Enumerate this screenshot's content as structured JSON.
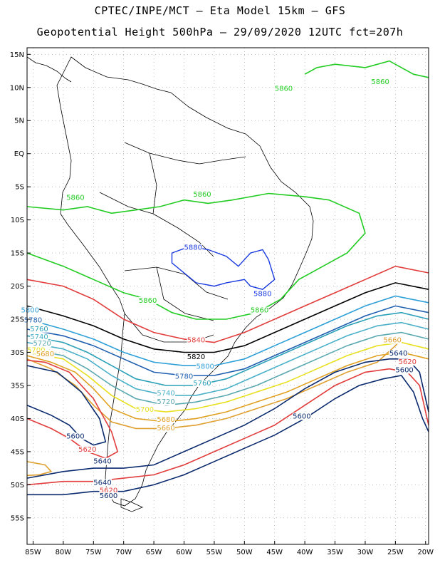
{
  "header": {
    "line1": "CPTEC/INPE/MCT –  Eta Model 15km – GFS",
    "line2": "Geopotential Height 500hPa – 29/09/2020 12UTC fct=207h"
  },
  "axes": {
    "lat_labels": [
      "15N",
      "10N",
      "5N",
      "EQ",
      "5S",
      "10S",
      "15S",
      "20S",
      "25S",
      "30S",
      "35S",
      "40S",
      "45S",
      "50S",
      "55S"
    ],
    "lat_values": [
      15,
      10,
      5,
      0,
      -5,
      -10,
      -15,
      -20,
      -25,
      -30,
      -35,
      -40,
      -45,
      -50,
      -55
    ],
    "lon_labels": [
      "85W",
      "80W",
      "75W",
      "70W",
      "65W",
      "60W",
      "55W",
      "50W",
      "45W",
      "40W",
      "35W",
      "30W",
      "25W",
      "20W"
    ],
    "lon_values": [
      -85,
      -80,
      -75,
      -70,
      -65,
      -60,
      -55,
      -50,
      -45,
      -40,
      -35,
      -30,
      -25,
      -20
    ],
    "lat_range": [
      -59,
      16
    ],
    "lon_range": [
      -86,
      -19.5
    ],
    "grid": "dotted"
  },
  "contour_colors": {
    "5880": "#1a3ae0",
    "5860": "#22cc22",
    "5840": "#e23c3c",
    "5820": "#000000",
    "5800": "#2ea0d8",
    "5780": "#1f5fb0",
    "5760": "#2aa0b8",
    "5740": "#4ab0c8",
    "5720": "#5aa8b0",
    "5700": "#e8e020",
    "5680": "#e0a020",
    "5660": "#e0a030",
    "5640": "#0a2a6e",
    "5620": "#e23c3c",
    "5600": "#0a2a6e"
  },
  "contours": [
    {
      "value": "5860",
      "pts": [
        [
          -86,
          -8
        ],
        [
          -80,
          -8.5
        ],
        [
          -76,
          -8
        ],
        [
          -72,
          -9
        ],
        [
          -68,
          -8.5
        ],
        [
          -64,
          -8
        ],
        [
          -60,
          -7
        ],
        [
          -56,
          -7.5
        ],
        [
          -52,
          -7
        ],
        [
          -46,
          -6
        ],
        [
          -40,
          -6.5
        ],
        [
          -36,
          -7
        ],
        [
          -31,
          -9
        ],
        [
          -30,
          -12
        ],
        [
          -33,
          -15
        ],
        [
          -37,
          -17
        ],
        [
          -41,
          -19
        ],
        [
          -44,
          -22
        ],
        [
          -48,
          -24
        ],
        [
          -53,
          -25
        ],
        [
          -58,
          -25
        ],
        [
          -62,
          -24
        ],
        [
          -66,
          -22
        ],
        [
          -70,
          -21
        ],
        [
          -75,
          -19
        ],
        [
          -80,
          -17
        ],
        [
          -86,
          -15
        ]
      ]
    },
    {
      "value": "5860",
      "pts": [
        [
          -40,
          12
        ],
        [
          -38,
          13
        ],
        [
          -35,
          13.5
        ],
        [
          -30,
          13
        ],
        [
          -26,
          14
        ],
        [
          -22,
          12
        ],
        [
          -19.5,
          11.5
        ]
      ]
    },
    {
      "value": "5840",
      "pts": [
        [
          -86,
          -19
        ],
        [
          -80,
          -20
        ],
        [
          -75,
          -22
        ],
        [
          -70,
          -25
        ],
        [
          -65,
          -27
        ],
        [
          -60,
          -28
        ],
        [
          -55,
          -28.5
        ],
        [
          -50,
          -27
        ],
        [
          -45,
          -25
        ],
        [
          -40,
          -23
        ],
        [
          -35,
          -21
        ],
        [
          -30,
          -19
        ],
        [
          -25,
          -17
        ],
        [
          -19.5,
          -18
        ]
      ]
    },
    {
      "value": "5820",
      "pts": [
        [
          -86,
          -23
        ],
        [
          -80,
          -24.5
        ],
        [
          -75,
          -26
        ],
        [
          -70,
          -28
        ],
        [
          -65,
          -29.5
        ],
        [
          -60,
          -30
        ],
        [
          -55,
          -30
        ],
        [
          -50,
          -29
        ],
        [
          -45,
          -27
        ],
        [
          -40,
          -25
        ],
        [
          -35,
          -23
        ],
        [
          -30,
          -21
        ],
        [
          -25,
          -19.5
        ],
        [
          -19.5,
          -20.5
        ]
      ]
    },
    {
      "value": "5800",
      "pts": [
        [
          -86,
          -25
        ],
        [
          -80,
          -26.5
        ],
        [
          -75,
          -28
        ],
        [
          -70,
          -30
        ],
        [
          -65,
          -31.5
        ],
        [
          -60,
          -32
        ],
        [
          -55,
          -32
        ],
        [
          -50,
          -31
        ],
        [
          -45,
          -29
        ],
        [
          -40,
          -27
        ],
        [
          -35,
          -25
        ],
        [
          -30,
          -23
        ],
        [
          -25,
          -21.5
        ],
        [
          -19.5,
          -22.5
        ]
      ]
    },
    {
      "value": "5780",
      "pts": [
        [
          -86,
          -26.5
        ],
        [
          -80,
          -27.5
        ],
        [
          -75,
          -29
        ],
        [
          -70,
          -31
        ],
        [
          -65,
          -33
        ],
        [
          -60,
          -33.5
        ],
        [
          -55,
          -33.5
        ],
        [
          -50,
          -32.5
        ],
        [
          -45,
          -30.5
        ],
        [
          -40,
          -28.5
        ],
        [
          -35,
          -26.5
        ],
        [
          -30,
          -24.5
        ],
        [
          -25,
          -23
        ],
        [
          -19.5,
          -24
        ]
      ]
    },
    {
      "value": "5760",
      "pts": [
        [
          -86,
          -27.5
        ],
        [
          -80,
          -28.5
        ],
        [
          -76,
          -30
        ],
        [
          -72,
          -32
        ],
        [
          -68,
          -34
        ],
        [
          -63,
          -35
        ],
        [
          -58,
          -35
        ],
        [
          -53,
          -34
        ],
        [
          -48,
          -32
        ],
        [
          -43,
          -30
        ],
        [
          -38,
          -28
        ],
        [
          -33,
          -26
        ],
        [
          -28,
          -24.5
        ],
        [
          -24,
          -24
        ],
        [
          -19.5,
          -25
        ]
      ]
    },
    {
      "value": "5740",
      "pts": [
        [
          -86,
          -28.5
        ],
        [
          -80,
          -29.5
        ],
        [
          -76,
          -31
        ],
        [
          -72,
          -33.5
        ],
        [
          -68,
          -35.5
        ],
        [
          -63,
          -36.5
        ],
        [
          -58,
          -36.5
        ],
        [
          -53,
          -35.5
        ],
        [
          -48,
          -33.5
        ],
        [
          -43,
          -31.5
        ],
        [
          -38,
          -29.5
        ],
        [
          -33,
          -27.5
        ],
        [
          -28,
          -26
        ],
        [
          -24,
          -25.5
        ],
        [
          -19.5,
          -26.5
        ]
      ]
    },
    {
      "value": "5720",
      "pts": [
        [
          -86,
          -29.5
        ],
        [
          -80,
          -30.5
        ],
        [
          -76,
          -32.5
        ],
        [
          -72,
          -35
        ],
        [
          -68,
          -37
        ],
        [
          -63,
          -38
        ],
        [
          -58,
          -37.5
        ],
        [
          -53,
          -36.5
        ],
        [
          -48,
          -35
        ],
        [
          -43,
          -33
        ],
        [
          -38,
          -31
        ],
        [
          -33,
          -29
        ],
        [
          -28,
          -27.5
        ],
        [
          -24,
          -27
        ],
        [
          -19.5,
          -28
        ]
      ]
    },
    {
      "value": "5700",
      "pts": [
        [
          -86,
          -30
        ],
        [
          -80,
          -31
        ],
        [
          -76,
          -33.5
        ],
        [
          -72,
          -36.5
        ],
        [
          -68,
          -38.5
        ],
        [
          -63,
          -39
        ],
        [
          -58,
          -38.5
        ],
        [
          -53,
          -37.5
        ],
        [
          -48,
          -36
        ],
        [
          -43,
          -34.5
        ],
        [
          -38,
          -32.5
        ],
        [
          -33,
          -30.5
        ],
        [
          -28,
          -29
        ],
        [
          -24,
          -28.5
        ],
        [
          -19.5,
          -29.5
        ]
      ]
    },
    {
      "value": "5680",
      "pts": [
        [
          -86,
          -30.5
        ],
        [
          -82,
          -31.5
        ],
        [
          -78,
          -33
        ],
        [
          -75,
          -35.5
        ],
        [
          -72,
          -38.5
        ],
        [
          -68,
          -40
        ],
        [
          -63,
          -40.5
        ],
        [
          -58,
          -40
        ],
        [
          -53,
          -39
        ],
        [
          -48,
          -37.5
        ],
        [
          -43,
          -36
        ],
        [
          -38,
          -34
        ],
        [
          -33,
          -32
        ],
        [
          -28,
          -30.5
        ],
        [
          -24,
          -30
        ],
        [
          -19.5,
          -31
        ]
      ]
    },
    {
      "value": "5660",
      "pts": [
        [
          -86,
          -31
        ],
        [
          -82,
          -32.5
        ],
        [
          -78,
          -35
        ],
        [
          -75,
          -38
        ],
        [
          -72,
          -40.5
        ],
        [
          -68,
          -41.5
        ],
        [
          -63,
          -41.5
        ],
        [
          -58,
          -41
        ],
        [
          -53,
          -40
        ],
        [
          -48,
          -38.5
        ],
        [
          -43,
          -37
        ],
        [
          -38,
          -35
        ],
        [
          -33,
          -33
        ],
        [
          -28,
          -31.5
        ],
        [
          -25,
          -29
        ],
        [
          -24,
          -28
        ]
      ]
    },
    {
      "value": "5640",
      "pts": [
        [
          -86,
          -49
        ],
        [
          -80,
          -48
        ],
        [
          -75,
          -47.5
        ],
        [
          -70,
          -47.5
        ],
        [
          -65,
          -47
        ],
        [
          -60,
          -45
        ],
        [
          -55,
          -43
        ],
        [
          -50,
          -41
        ],
        [
          -45,
          -38.5
        ],
        [
          -40,
          -35.5
        ],
        [
          -35,
          -33
        ],
        [
          -30,
          -31.5
        ],
        [
          -26,
          -31
        ],
        [
          -23,
          -31
        ],
        [
          -21,
          -33
        ],
        [
          -19.5,
          -39
        ]
      ]
    },
    {
      "value": "5620",
      "pts": [
        [
          -86,
          -50
        ],
        [
          -80,
          -49.5
        ],
        [
          -75,
          -49.5
        ],
        [
          -70,
          -49
        ],
        [
          -65,
          -48.5
        ],
        [
          -60,
          -47
        ],
        [
          -55,
          -45
        ],
        [
          -50,
          -43
        ],
        [
          -45,
          -41
        ],
        [
          -40,
          -38
        ],
        [
          -35,
          -35
        ],
        [
          -30,
          -33
        ],
        [
          -26,
          -32.5
        ],
        [
          -23,
          -33
        ],
        [
          -21,
          -35
        ],
        [
          -19.5,
          -41
        ]
      ]
    },
    {
      "value": "5600",
      "pts": [
        [
          -86,
          -51.5
        ],
        [
          -80,
          -51.5
        ],
        [
          -75,
          -51
        ],
        [
          -70,
          -51
        ],
        [
          -65,
          -50
        ],
        [
          -60,
          -48.5
        ],
        [
          -55,
          -46.5
        ],
        [
          -50,
          -44.5
        ],
        [
          -45,
          -42.5
        ],
        [
          -40,
          -40
        ],
        [
          -35,
          -37
        ],
        [
          -31,
          -35
        ],
        [
          -27,
          -34
        ],
        [
          -24,
          -33.5
        ],
        [
          -22,
          -36
        ],
        [
          -20.5,
          -40
        ],
        [
          -19.5,
          -42
        ]
      ]
    },
    {
      "value": "5620",
      "pts": [
        [
          -86,
          -40
        ],
        [
          -82,
          -41.5
        ],
        [
          -79,
          -43
        ],
        [
          -76,
          -45
        ],
        [
          -73,
          -46
        ],
        [
          -71,
          -45
        ],
        [
          -72,
          -42
        ],
        [
          -75,
          -37
        ],
        [
          -79,
          -33
        ],
        [
          -83,
          -31.5
        ],
        [
          -86,
          -31.2
        ]
      ]
    },
    {
      "value": "5600",
      "pts": [
        [
          -86,
          -38
        ],
        [
          -82,
          -39.5
        ],
        [
          -79,
          -41
        ],
        [
          -77,
          -43
        ],
        [
          -75,
          -44
        ],
        [
          -73,
          -43.5
        ],
        [
          -74,
          -40
        ],
        [
          -77,
          -36
        ],
        [
          -81,
          -33
        ],
        [
          -86,
          -32
        ]
      ]
    },
    {
      "value": "5660",
      "pts": [
        [
          -86,
          -46.5
        ],
        [
          -83,
          -47
        ],
        [
          -82,
          -48
        ],
        [
          -84,
          -48.5
        ],
        [
          -86,
          -48.6
        ]
      ]
    }
  ],
  "blue_5880": [
    [
      -62,
      -15
    ],
    [
      -59,
      -14
    ],
    [
      -56,
      -14.5
    ],
    [
      -53,
      -15.5
    ],
    [
      -51,
      -17
    ],
    [
      -49,
      -15
    ],
    [
      -47,
      -14.5
    ],
    [
      -46,
      -16
    ],
    [
      -45,
      -19
    ],
    [
      -47,
      -20.5
    ],
    [
      -49,
      -20
    ],
    [
      -50,
      -19
    ],
    [
      -53,
      -19.5
    ],
    [
      -55,
      -20
    ],
    [
      -58,
      -19.5
    ],
    [
      -60,
      -18
    ],
    [
      -62,
      -16.5
    ],
    [
      -62,
      -15
    ]
  ],
  "labels": [
    {
      "text": "5860",
      "lon": -43.5,
      "lat": 9.5,
      "value": "5860"
    },
    {
      "text": "5860",
      "lon": -27.5,
      "lat": 10.5,
      "value": "5860"
    },
    {
      "text": "5860",
      "lon": -57,
      "lat": -6.5,
      "value": "5860"
    },
    {
      "text": "5860",
      "lon": -78,
      "lat": -7,
      "value": "5860"
    },
    {
      "text": "5880",
      "lon": -58.5,
      "lat": -14.5,
      "value": "5880"
    },
    {
      "text": "5880",
      "lon": -47,
      "lat": -21.5,
      "value": "5880"
    },
    {
      "text": "5860",
      "lon": -66,
      "lat": -22.5,
      "value": "5860"
    },
    {
      "text": "5860",
      "lon": -47.5,
      "lat": -24,
      "value": "5860"
    },
    {
      "text": "5840",
      "lon": -58,
      "lat": -28.5,
      "value": "5840"
    },
    {
      "text": "5820",
      "lon": -58,
      "lat": -31,
      "value": "5820"
    },
    {
      "text": "5800",
      "lon": -56.5,
      "lat": -32.5,
      "value": "5800"
    },
    {
      "text": "5780",
      "lon": -60,
      "lat": -34,
      "value": "5780"
    },
    {
      "text": "5760",
      "lon": -57,
      "lat": -35,
      "value": "5760"
    },
    {
      "text": "5740",
      "lon": -63,
      "lat": -36.5,
      "value": "5740"
    },
    {
      "text": "5720",
      "lon": -63,
      "lat": -37.8,
      "value": "5720"
    },
    {
      "text": "5700",
      "lon": -66.5,
      "lat": -39,
      "value": "5700"
    },
    {
      "text": "5680",
      "lon": -63,
      "lat": -40.5,
      "value": "5680"
    },
    {
      "text": "5660",
      "lon": -63,
      "lat": -41.8,
      "value": "5660"
    },
    {
      "text": "5600",
      "lon": -40.5,
      "lat": -40,
      "value": "5600"
    },
    {
      "text": "5660",
      "lon": -25.5,
      "lat": -28.5,
      "value": "5660"
    },
    {
      "text": "5640",
      "lon": -24.5,
      "lat": -30.5,
      "value": "5640"
    },
    {
      "text": "5620",
      "lon": -23,
      "lat": -31.8,
      "value": "5620"
    },
    {
      "text": "5600",
      "lon": -23.5,
      "lat": -33,
      "value": "5600"
    },
    {
      "text": "5800",
      "lon": -85.5,
      "lat": -24,
      "value": "5800"
    },
    {
      "text": "5780",
      "lon": -85,
      "lat": -25.5,
      "value": "5780"
    },
    {
      "text": "5760",
      "lon": -84,
      "lat": -26.8,
      "value": "5760"
    },
    {
      "text": "5740",
      "lon": -84,
      "lat": -28,
      "value": "5740"
    },
    {
      "text": "5720",
      "lon": -83.5,
      "lat": -29,
      "value": "5720"
    },
    {
      "text": "5700",
      "lon": -84.5,
      "lat": -30,
      "value": "5700"
    },
    {
      "text": "5680",
      "lon": -83,
      "lat": -30.6,
      "value": "5680"
    },
    {
      "text": "5600",
      "lon": -78,
      "lat": -43,
      "value": "5600"
    },
    {
      "text": "5620",
      "lon": -76,
      "lat": -45,
      "value": "5620"
    },
    {
      "text": "5640",
      "lon": -73.5,
      "lat": -46.8,
      "value": "5640"
    },
    {
      "text": "5640",
      "lon": -73.5,
      "lat": -50,
      "value": "5640"
    },
    {
      "text": "5620",
      "lon": -72.5,
      "lat": -51.2,
      "value": "5620"
    },
    {
      "text": "5600",
      "lon": -72.5,
      "lat": -52,
      "value": "5600"
    }
  ]
}
